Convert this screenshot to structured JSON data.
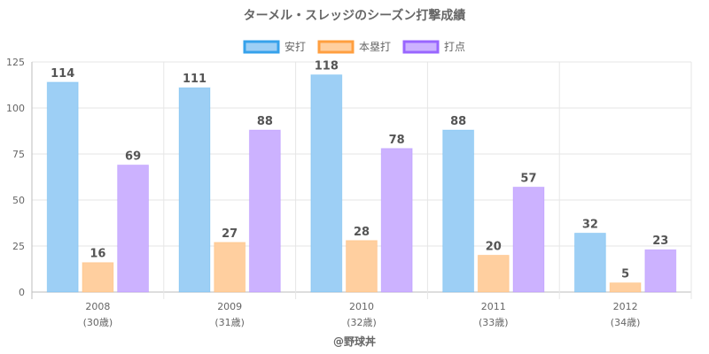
{
  "chart_data": {
    "type": "bar",
    "title": "ターメル・スレッジのシーズン打撃成績",
    "categories": [
      "2008",
      "2009",
      "2010",
      "2011",
      "2012"
    ],
    "category_sublabels": [
      "(30歳)",
      "(31歳)",
      "(32歳)",
      "(33歳)",
      "(34歳)"
    ],
    "series": [
      {
        "name": "安打",
        "values": [
          114,
          111,
          118,
          88,
          32
        ],
        "fill": "#9dcff5",
        "stroke": "#36a2eb"
      },
      {
        "name": "本塁打",
        "values": [
          16,
          27,
          28,
          20,
          5
        ],
        "fill": "#ffcf9f",
        "stroke": "#ff9f40"
      },
      {
        "name": "打点",
        "values": [
          69,
          88,
          78,
          57,
          23
        ],
        "fill": "#ccb2ff",
        "stroke": "#9966ff"
      }
    ],
    "ylim": [
      0,
      125
    ],
    "yticks": [
      "0",
      "25",
      "50",
      "75",
      "100",
      "125"
    ],
    "xlabel": "",
    "ylabel": "",
    "grid": true,
    "legend": "top-center",
    "data_labels": true,
    "credit": "@野球丼",
    "colors": {
      "grid": "#e6e6e6",
      "axis": "#bdbdbd",
      "text": "#666666",
      "label": "#555555"
    }
  }
}
